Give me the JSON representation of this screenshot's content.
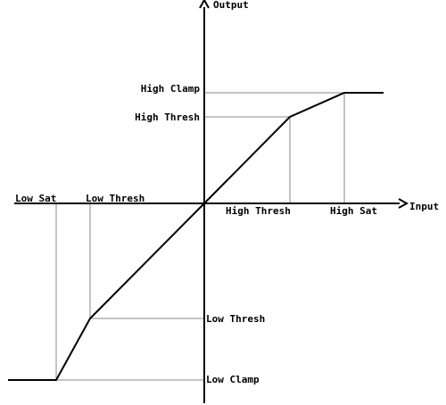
{
  "diagram": {
    "axis_labels": {
      "x": "Input",
      "y": "Output"
    },
    "y_labels": {
      "high_clamp": "High Clamp",
      "high_thresh": "High Thresh",
      "low_thresh": "Low Thresh",
      "low_clamp": "Low Clamp"
    },
    "x_labels": {
      "low_sat": "Low Sat",
      "low_thresh": "Low Thresh",
      "high_thresh": "High Thresh",
      "high_sat": "High Sat"
    },
    "colors": {
      "axis": "#000000",
      "curve": "#000000",
      "guide": "#888888"
    }
  }
}
